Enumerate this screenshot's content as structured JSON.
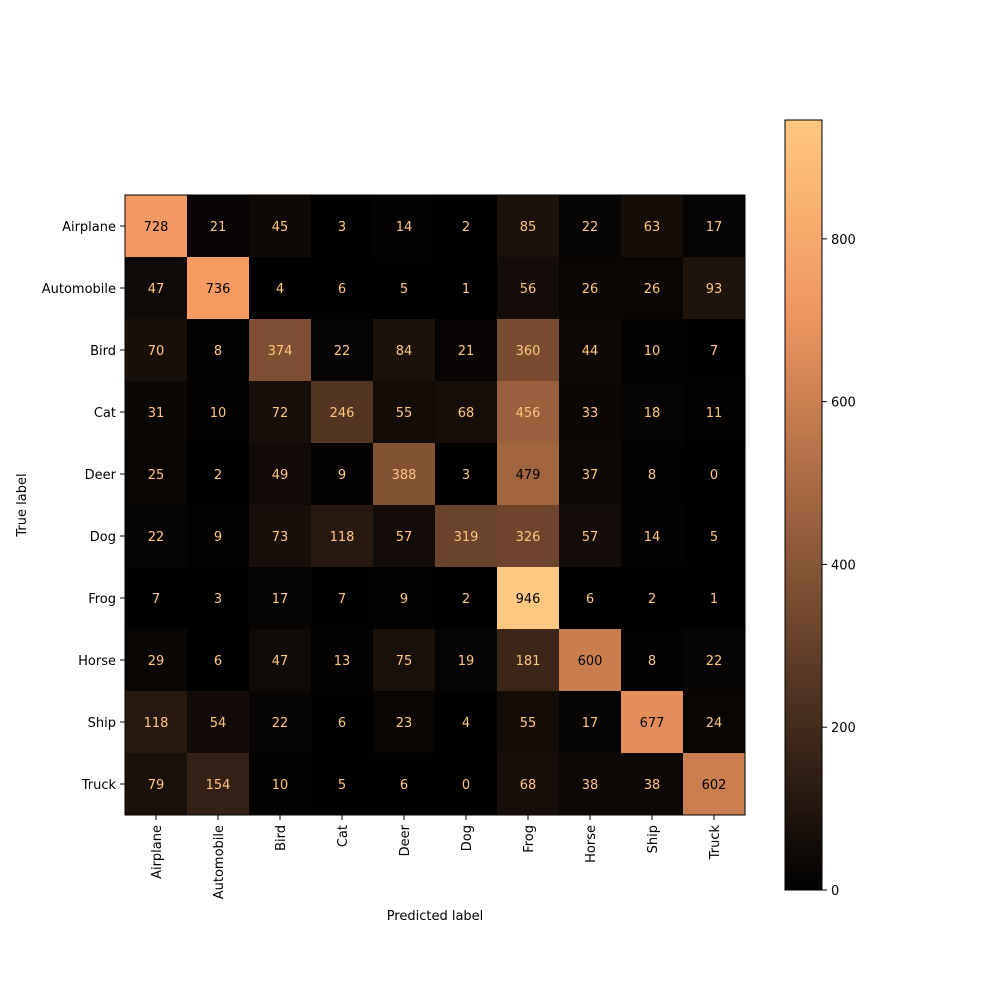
{
  "chart_data": {
    "type": "heatmap",
    "title": "",
    "xlabel": "Predicted label",
    "ylabel": "True label",
    "categories": [
      "Airplane",
      "Automobile",
      "Bird",
      "Cat",
      "Deer",
      "Dog",
      "Frog",
      "Horse",
      "Ship",
      "Truck"
    ],
    "values": [
      [
        728,
        21,
        45,
        3,
        14,
        2,
        85,
        22,
        63,
        17
      ],
      [
        47,
        736,
        4,
        6,
        5,
        1,
        56,
        26,
        26,
        93
      ],
      [
        70,
        8,
        374,
        22,
        84,
        21,
        360,
        44,
        10,
        7
      ],
      [
        31,
        10,
        72,
        246,
        55,
        68,
        456,
        33,
        18,
        11
      ],
      [
        25,
        2,
        49,
        9,
        388,
        3,
        479,
        37,
        8,
        0
      ],
      [
        22,
        9,
        73,
        118,
        57,
        319,
        326,
        57,
        14,
        5
      ],
      [
        7,
        3,
        17,
        7,
        9,
        2,
        946,
        6,
        2,
        1
      ],
      [
        29,
        6,
        47,
        13,
        75,
        19,
        181,
        600,
        8,
        22
      ],
      [
        118,
        54,
        22,
        6,
        23,
        4,
        55,
        17,
        677,
        24
      ],
      [
        79,
        154,
        10,
        5,
        6,
        0,
        68,
        38,
        38,
        602
      ]
    ],
    "colormap": "copper",
    "value_range": [
      0,
      946
    ],
    "colorbar_ticks": [
      0,
      200,
      400,
      600,
      800
    ],
    "grid": false,
    "legend": "colorbar-right"
  }
}
